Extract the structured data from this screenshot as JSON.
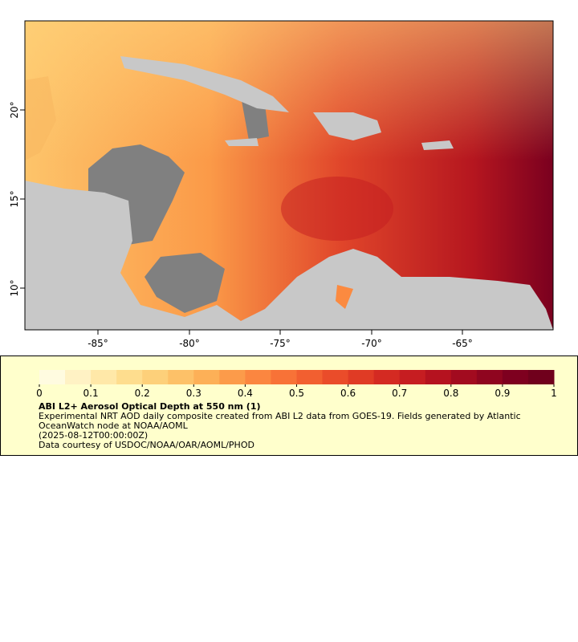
{
  "map": {
    "lon_ticks": [
      "-85°",
      "-80°",
      "-75°",
      "-70°",
      "-65°"
    ],
    "lat_ticks": [
      "20°",
      "15°",
      "10°"
    ]
  },
  "legend": {
    "colorbar": {
      "ticks": [
        0,
        0.1,
        0.2,
        0.3,
        0.4,
        0.5,
        0.6,
        0.7,
        0.8,
        0.9,
        1
      ],
      "colors": [
        "#fffbe0",
        "#fff2c4",
        "#ffe8a8",
        "#fedd8e",
        "#fdd07a",
        "#fdc168",
        "#fdb057",
        "#fc9b4a",
        "#fb8640",
        "#f87237",
        "#f25f30",
        "#ea4c2a",
        "#e03b25",
        "#d42a22",
        "#c61d21",
        "#b5121f",
        "#a20b1f",
        "#8f051f",
        "#7e001f",
        "#70001c"
      ]
    },
    "title": "ABI L2+ Aerosol Optical Depth at 550 nm (1)",
    "description": "Experimental NRT AOD daily composite created from ABI L2 data from GOES-19. Fields generated by Atlantic OceanWatch node at NOAA/AOML",
    "time": "(2025-08-12T00:00:00Z)",
    "credit": "Data courtesy of USDOC/NOAA/OAR/AOML/PHOD"
  }
}
